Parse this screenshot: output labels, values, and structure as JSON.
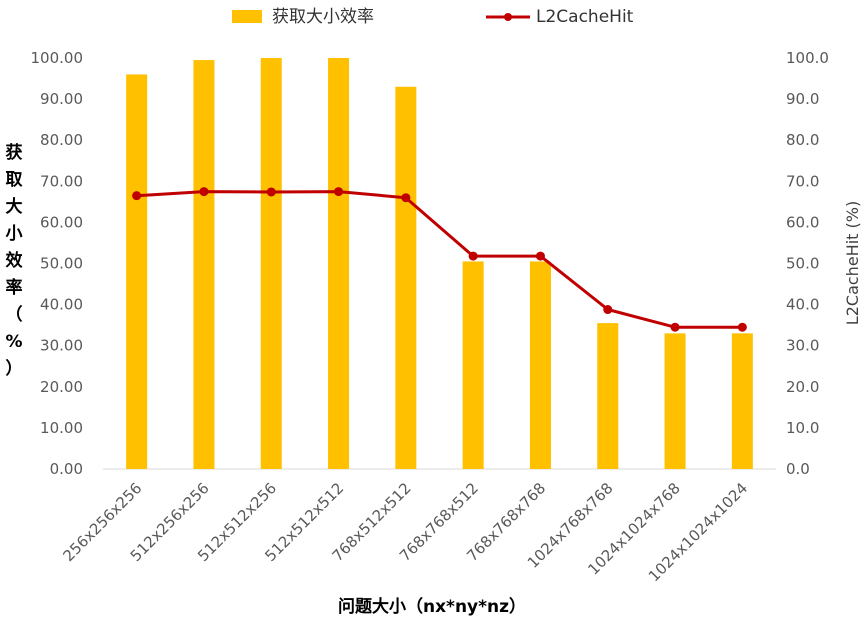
{
  "chart_data": {
    "type": "bar",
    "categories": [
      "256x256x256",
      "512x256x256",
      "512x512x256",
      "512x512x512",
      "768x512x512",
      "768x768x512",
      "768x768x768",
      "1024x768x768",
      "1024x1024x768",
      "1024x1024x1024"
    ],
    "series": [
      {
        "name": "获取大小效率",
        "type": "bar",
        "axis": "left",
        "color": "#FFC000",
        "values": [
          96.0,
          99.5,
          100.0,
          100.0,
          93.0,
          50.5,
          50.5,
          35.5,
          33.0,
          33.0
        ]
      },
      {
        "name": "L2CacheHit",
        "type": "line",
        "axis": "right",
        "color": "#C00000",
        "values": [
          66.5,
          67.5,
          67.4,
          67.5,
          66.0,
          51.8,
          51.8,
          38.8,
          34.5,
          34.5
        ]
      }
    ],
    "xlabel": "问题大小（nx*ny*nz）",
    "ylabel": "获取大小效率（%）",
    "ylabel_chars": [
      "获",
      "取",
      "大",
      "小",
      "效",
      "率",
      "（",
      "%",
      "）"
    ],
    "y2label": "L2CacheHit (%)",
    "ylim": [
      0,
      100
    ],
    "y2lim": [
      0,
      100
    ],
    "yticks": [
      "0.00",
      "10.00",
      "20.00",
      "30.00",
      "40.00",
      "50.00",
      "60.00",
      "70.00",
      "80.00",
      "90.00",
      "100.00"
    ],
    "y2ticks": [
      "0.0",
      "10.0",
      "20.0",
      "30.0",
      "40.0",
      "50.0",
      "60.0",
      "70.0",
      "80.0",
      "90.0",
      "100.0"
    ],
    "grid": false,
    "legend_position": "top"
  }
}
